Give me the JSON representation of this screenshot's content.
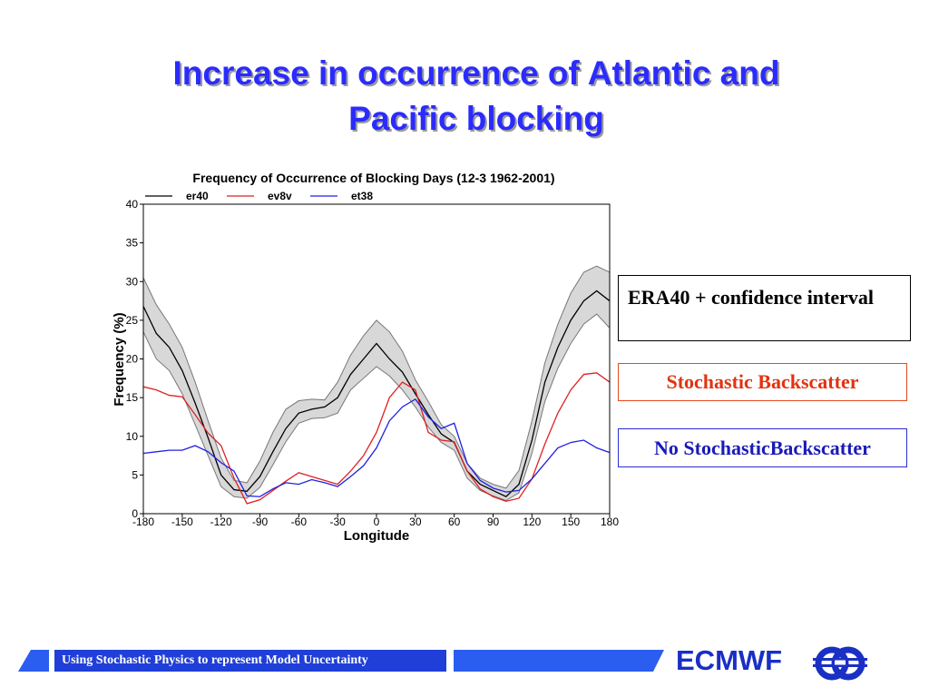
{
  "slide": {
    "title_line1": "Increase in occurrence of Atlantic and",
    "title_line2": "Pacific blocking"
  },
  "boxes": {
    "era40": "ERA40 + confidence interval",
    "stochastic": "Stochastic Backscatter",
    "no_stochastic": "No StochasticBackscatter"
  },
  "footer": {
    "caption": "Using Stochastic Physics to represent Model Uncertainty",
    "brand": "ECMWF"
  },
  "colors": {
    "title": "#2b2bff",
    "er40": "#000000",
    "ev8v": "#e02020",
    "et38": "#2020e0",
    "band": "#d8d8d8"
  },
  "chart_data": {
    "type": "line",
    "title": "Frequency of Occurrence of Blocking Days (12-3 1962-2001)",
    "xlabel": "Longitude",
    "ylabel": "Frequency (%)",
    "xlim": [
      -180,
      180
    ],
    "ylim": [
      0,
      40
    ],
    "xticks": [
      -180,
      -150,
      -120,
      -90,
      -60,
      -30,
      0,
      30,
      60,
      90,
      120,
      150,
      180
    ],
    "yticks": [
      0,
      5,
      10,
      15,
      20,
      25,
      30,
      35,
      40
    ],
    "legend_position": "top",
    "x": [
      -180,
      -170,
      -160,
      -150,
      -140,
      -130,
      -120,
      -110,
      -100,
      -90,
      -80,
      -70,
      -60,
      -50,
      -40,
      -30,
      -20,
      -10,
      0,
      10,
      20,
      30,
      40,
      50,
      60,
      70,
      80,
      90,
      100,
      110,
      120,
      130,
      140,
      150,
      160,
      170,
      180
    ],
    "series": [
      {
        "name": "er40",
        "values": [
          26.8,
          23.3,
          21.5,
          18.5,
          14.3,
          9.8,
          5.0,
          3.1,
          2.9,
          4.8,
          8.0,
          11.0,
          13.0,
          13.5,
          13.8,
          15.0,
          18.0,
          20.0,
          22.0,
          20.0,
          18.3,
          15.5,
          12.8,
          10.3,
          9.2,
          5.5,
          3.8,
          3.0,
          2.2,
          3.8,
          9.5,
          17.0,
          21.5,
          25.0,
          27.5,
          28.8,
          27.5
        ],
        "upper": [
          30.5,
          27.0,
          24.5,
          21.5,
          17.0,
          12.0,
          7.2,
          4.3,
          4.0,
          6.8,
          10.5,
          13.5,
          14.6,
          14.8,
          14.7,
          17.0,
          20.5,
          23.0,
          25.0,
          23.5,
          21.0,
          17.3,
          14.5,
          11.5,
          10.0,
          6.5,
          4.6,
          3.8,
          3.3,
          5.6,
          12.0,
          19.5,
          24.5,
          28.5,
          31.2,
          32.0,
          31.2
        ],
        "lower": [
          23.5,
          20.0,
          18.5,
          15.5,
          11.5,
          7.5,
          3.5,
          2.2,
          2.0,
          3.4,
          6.3,
          9.3,
          11.7,
          12.3,
          12.4,
          13.0,
          16.0,
          17.5,
          19.0,
          17.8,
          16.0,
          13.8,
          11.2,
          9.2,
          8.2,
          4.6,
          3.0,
          2.3,
          1.7,
          2.7,
          7.8,
          14.5,
          18.8,
          22.0,
          24.5,
          25.8,
          24.0
        ]
      },
      {
        "name": "ev8v",
        "values": [
          16.4,
          16.0,
          15.3,
          15.1,
          12.8,
          10.4,
          8.8,
          4.6,
          1.3,
          1.8,
          3.0,
          4.2,
          5.3,
          4.8,
          4.3,
          3.8,
          5.5,
          7.5,
          10.5,
          15.0,
          17.0,
          16.0,
          10.5,
          9.5,
          9.3,
          5.5,
          3.2,
          2.2,
          1.6,
          2.0,
          4.5,
          9.0,
          13.0,
          16.0,
          18.0,
          18.2,
          17.0
        ]
      },
      {
        "name": "et38",
        "values": [
          7.8,
          8.0,
          8.2,
          8.2,
          8.8,
          8.0,
          6.6,
          5.5,
          2.3,
          2.2,
          3.2,
          4.0,
          3.8,
          4.4,
          4.0,
          3.5,
          4.8,
          6.2,
          8.5,
          12.0,
          13.8,
          14.8,
          12.5,
          11.0,
          11.7,
          6.5,
          4.3,
          3.3,
          2.8,
          3.0,
          4.5,
          6.5,
          8.5,
          9.2,
          9.5,
          8.5,
          7.9
        ]
      }
    ]
  }
}
